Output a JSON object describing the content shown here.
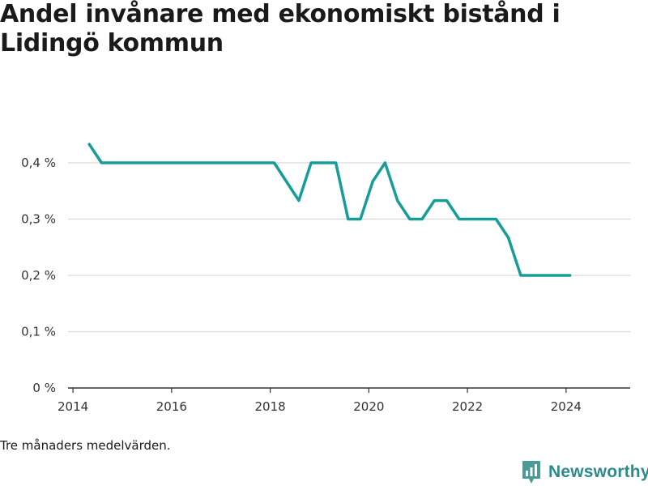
{
  "header": {
    "title_line1": "Andel invånare med ekonomiskt bistånd i",
    "title_line2": "Lidingö kommun"
  },
  "footer": {
    "note": "Tre månaders medelvärden.",
    "brand": "Newsworthy",
    "brand_icon": "bar-chart-icon"
  },
  "chart_data": {
    "type": "line",
    "title": "Andel invånare med ekonomiskt bistånd i Lidingö kommun",
    "xlabel": "",
    "ylabel": "",
    "xlim": [
      2013.9,
      2025.3
    ],
    "ylim": [
      0,
      0.4
    ],
    "x_ticks": [
      2014,
      2016,
      2018,
      2020,
      2022,
      2024
    ],
    "y_ticks": [
      0,
      0.1,
      0.2,
      0.3,
      0.4
    ],
    "y_tick_labels": [
      "0 %",
      "0,1 %",
      "0,2 %",
      "0,3 %",
      "0,4 %"
    ],
    "grid": true,
    "line_color": "#169d98",
    "series": [
      {
        "x": [
          2014.33,
          2014.58,
          2018.08,
          2018.58,
          2018.83,
          2019.33,
          2019.58,
          2019.83,
          2020.08,
          2020.33,
          2020.58,
          2020.83,
          2021.08,
          2021.33,
          2021.58,
          2021.83,
          2022.58,
          2022.83,
          2023.08,
          2024.08
        ],
        "values": [
          0.433,
          0.4,
          0.4,
          0.333,
          0.4,
          0.4,
          0.3,
          0.3,
          0.367,
          0.4,
          0.333,
          0.3,
          0.3,
          0.333,
          0.333,
          0.3,
          0.3,
          0.267,
          0.2,
          0.2
        ]
      }
    ]
  }
}
